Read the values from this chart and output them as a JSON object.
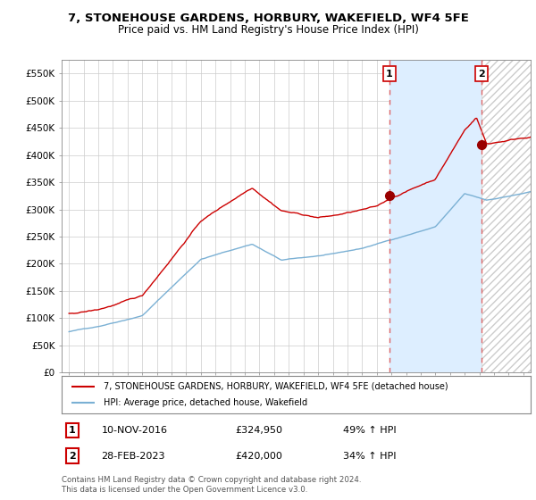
{
  "title": "7, STONEHOUSE GARDENS, HORBURY, WAKEFIELD, WF4 5FE",
  "subtitle": "Price paid vs. HM Land Registry's House Price Index (HPI)",
  "footer": "Contains HM Land Registry data © Crown copyright and database right 2024.\nThis data is licensed under the Open Government Licence v3.0.",
  "legend_line1": "7, STONEHOUSE GARDENS, HORBURY, WAKEFIELD, WF4 5FE (detached house)",
  "legend_line2": "HPI: Average price, detached house, Wakefield",
  "sale1_label": "1",
  "sale1_date": "10-NOV-2016",
  "sale1_price": "£324,950",
  "sale1_hpi": "49% ↑ HPI",
  "sale2_label": "2",
  "sale2_date": "28-FEB-2023",
  "sale2_price": "£420,000",
  "sale2_hpi": "34% ↑ HPI",
  "hpi_color": "#7ab0d4",
  "price_color": "#cc0000",
  "sale1_x": 2016.86,
  "sale1_y": 324950,
  "sale2_x": 2023.16,
  "sale2_y": 420000,
  "ylim": [
    0,
    575000
  ],
  "xlim": [
    1994.5,
    2026.5
  ],
  "yticks": [
    0,
    50000,
    100000,
    150000,
    200000,
    250000,
    300000,
    350000,
    400000,
    450000,
    500000,
    550000
  ],
  "ytick_labels": [
    "£0",
    "£50K",
    "£100K",
    "£150K",
    "£200K",
    "£250K",
    "£300K",
    "£350K",
    "£400K",
    "£450K",
    "£500K",
    "£550K"
  ],
  "background_color": "#ffffff",
  "plot_bg_color": "#ffffff",
  "grid_color": "#cccccc",
  "shade_color": "#ddeeff",
  "hatch_color": "#cccccc"
}
